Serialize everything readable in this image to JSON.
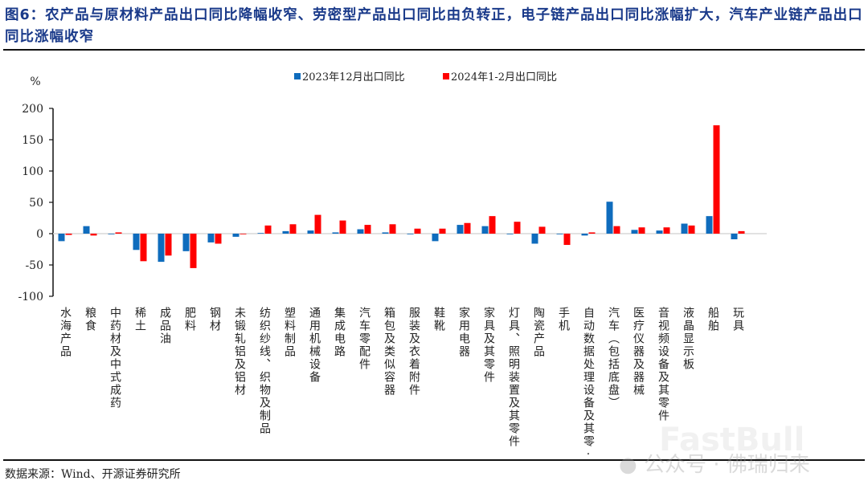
{
  "title": "图6：农产品与原材料产品出口同比降幅收窄、劳密型产品出口同比由负转正，电子链产品出口同比涨幅扩大，汽车产业链产品出口同比涨幅收窄",
  "source": "数据来源：Wind、开源证券研究所",
  "watermark": "公众号 · 佛瑞归来",
  "watermark_logo": "FastBull",
  "chart_data": {
    "type": "bar",
    "ylabel": "%",
    "ylim": [
      -100,
      200
    ],
    "yticks": [
      -100,
      -50,
      0,
      50,
      100,
      150,
      200
    ],
    "grid": false,
    "legend_position": "top-center",
    "categories": [
      "水海产品",
      "粮食",
      "中药材及中式成药",
      "稀土",
      "成品油",
      "肥料",
      "钢材",
      "未锻轧铝及铝材",
      "纺织纱线、织物及制品",
      "塑料制品",
      "通用机械设备",
      "集成电路",
      "汽车零配件",
      "箱包及类似容器",
      "服装及衣着附件",
      "鞋靴",
      "家用电器",
      "家具及其零件",
      "灯具、照明装置及其零件",
      "陶瓷产品",
      "手机",
      "自动数据处理设备及其零·",
      "汽车（包括底盘）",
      "医疗仪器及器械",
      "音视频设备及其零件",
      "液晶显示板",
      "船舶",
      "玩具"
    ],
    "series": [
      {
        "name": "2023年12月出口同比",
        "color": "#0f6cbd",
        "values": [
          -12,
          12,
          -1,
          -26,
          -45,
          -28,
          -14,
          -5,
          1,
          4,
          5,
          2,
          7,
          2,
          -1,
          -12,
          14,
          12,
          0,
          -16,
          0,
          -3,
          51,
          6,
          5,
          16,
          28,
          -9
        ]
      },
      {
        "name": "2024年1-2月出口同比",
        "color": "#ff0000",
        "values": [
          -2,
          -3,
          2,
          -44,
          -35,
          -55,
          -16,
          0,
          13,
          15,
          30,
          21,
          14,
          15,
          8,
          8,
          17,
          28,
          19,
          11,
          -18,
          2,
          12,
          10,
          10,
          13,
          173,
          4
        ]
      }
    ]
  }
}
